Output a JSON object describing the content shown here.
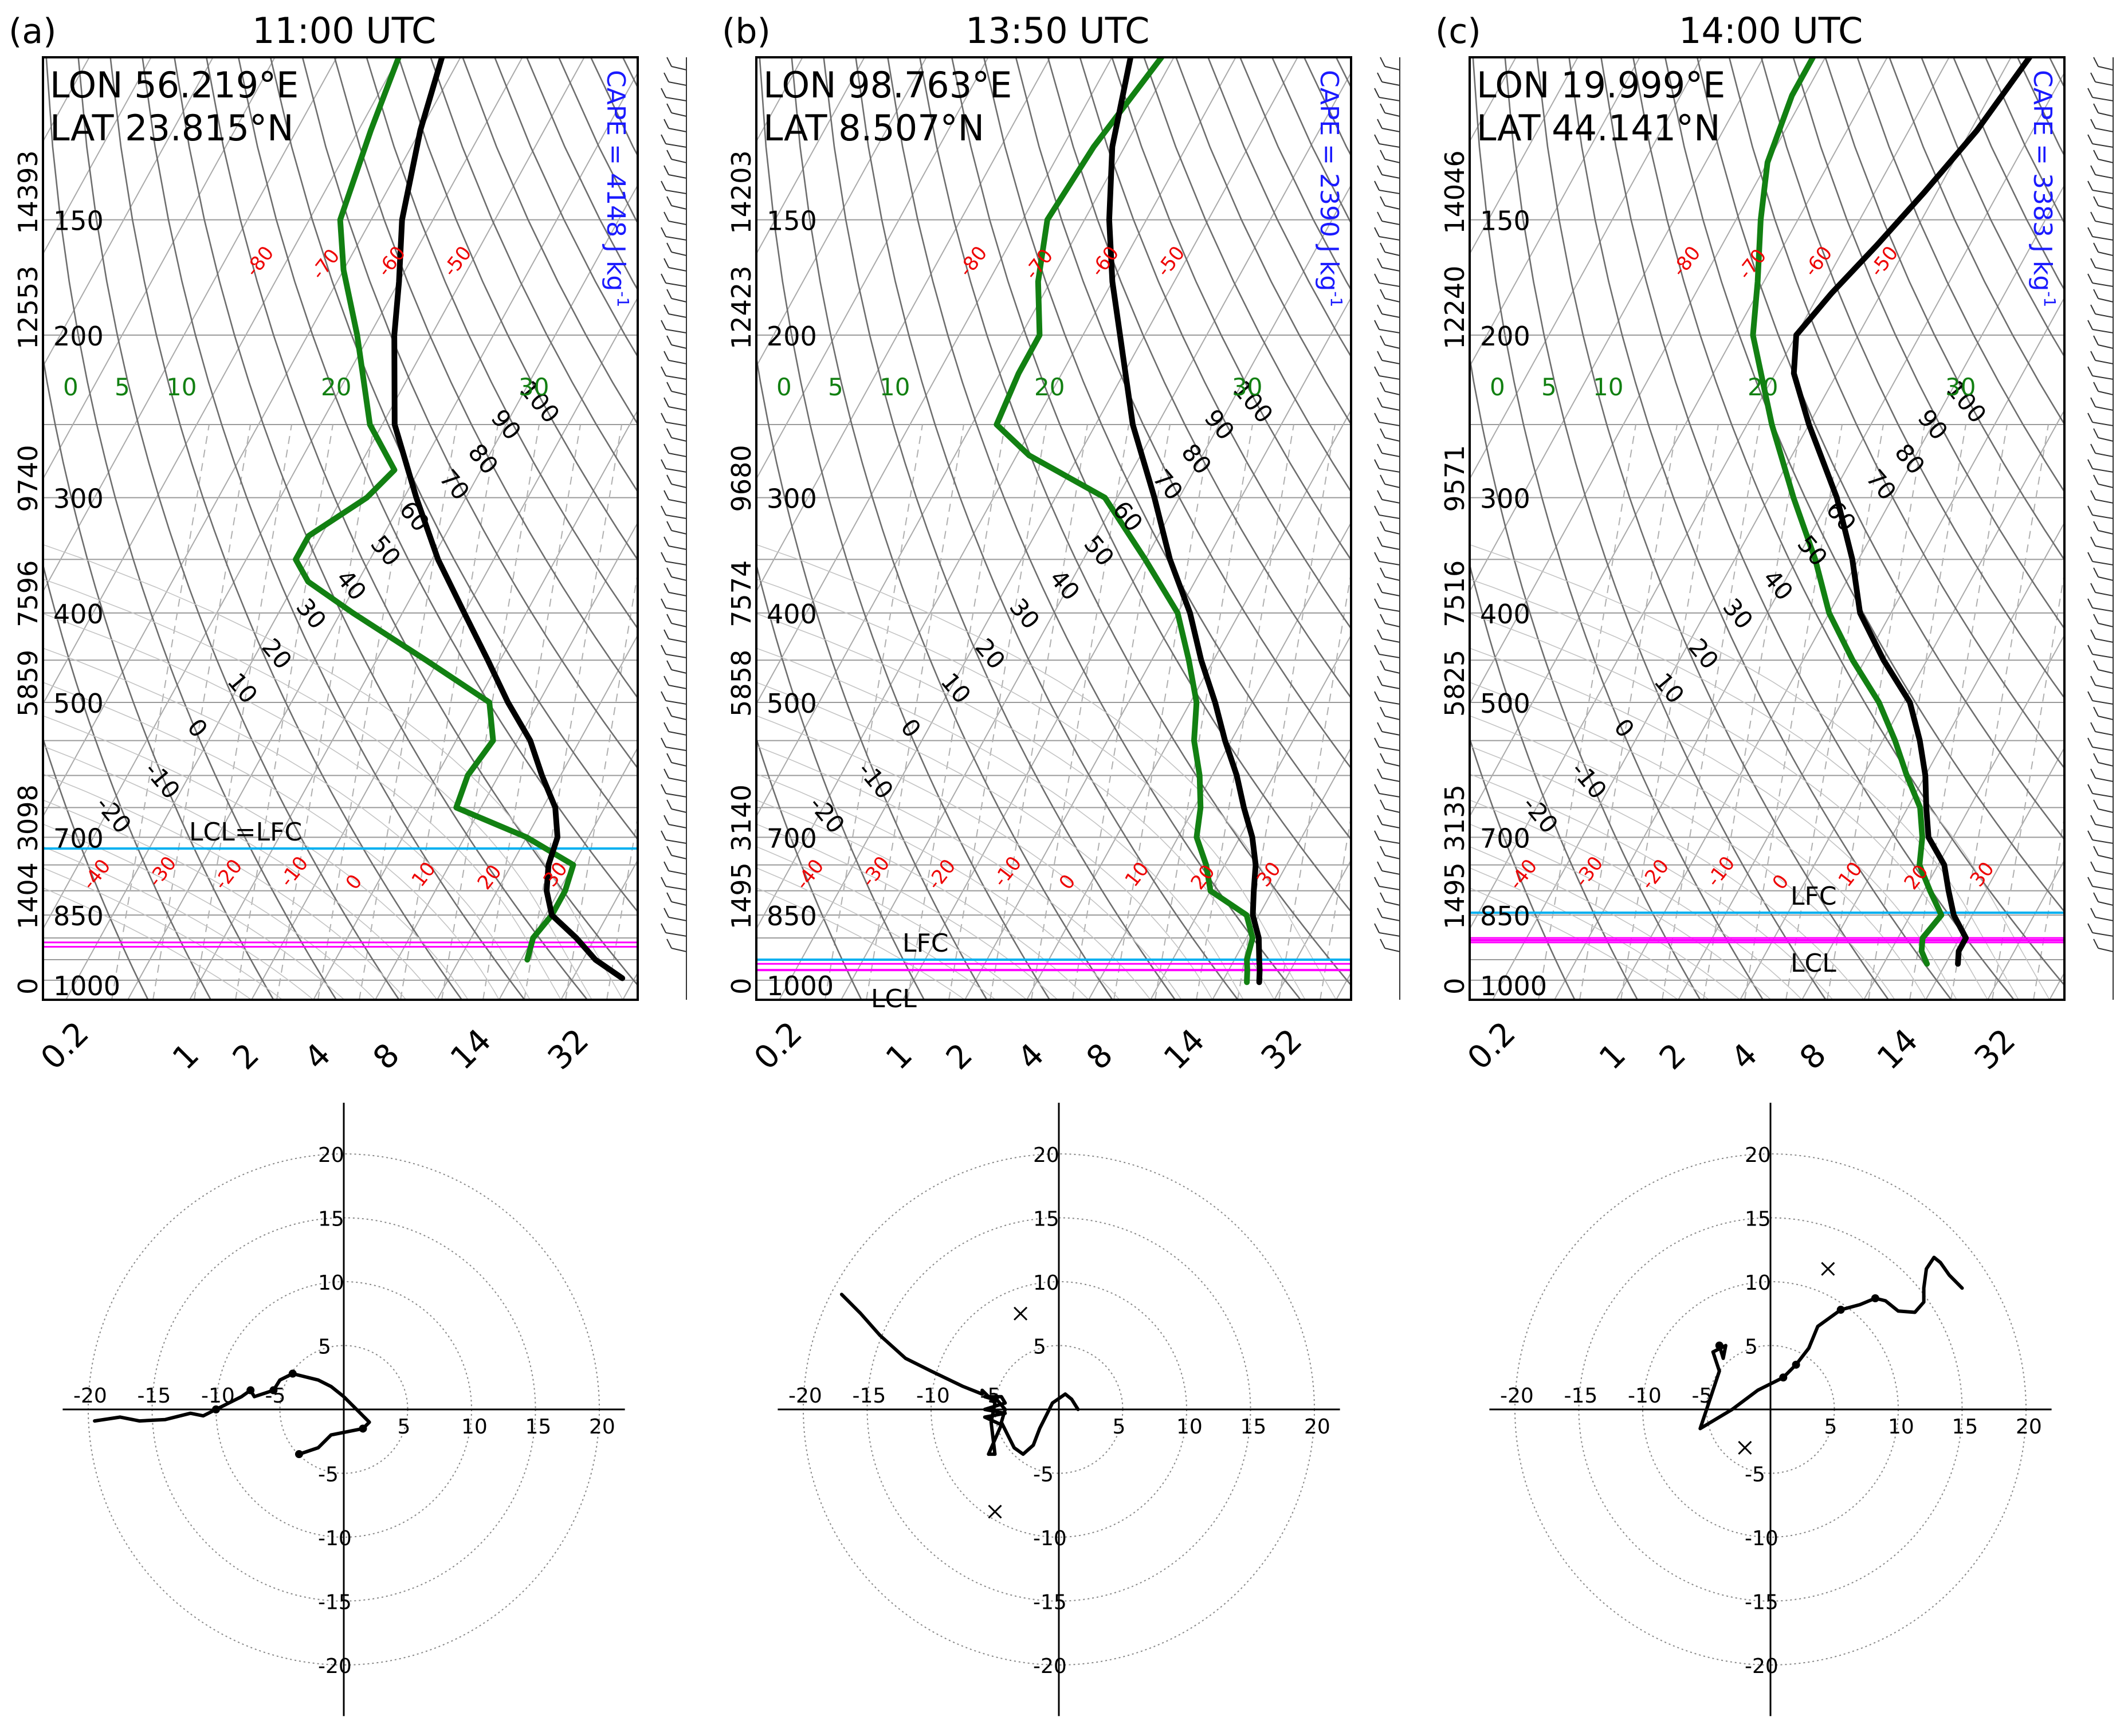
{
  "chart_data": [
    {
      "type": "skew-t",
      "panel_label": "(a)",
      "title": "11:00 UTC",
      "lon_text": "LON  56.219°E",
      "lat_text": "LAT  23.815°N",
      "cape_text": "CAPE = 4148 J kg",
      "cape_exp": "-1",
      "cape_value_j_per_kg": 4148,
      "pressure_ticks_hpa": [
        "150",
        "200",
        "300",
        "400",
        "500",
        "700",
        "850",
        "1000"
      ],
      "height_ticks_m": [
        "14393",
        "12553",
        "9740",
        "7596",
        "5859",
        "3098",
        "1404",
        "0"
      ],
      "mixing_ratio_ticks": [
        "0.2",
        "1",
        "2",
        "4",
        "8",
        "14",
        "32"
      ],
      "isotherm_labels_upper": [
        "-80",
        "-70",
        "-60",
        "-50"
      ],
      "isotherm_labels_lower": [
        "-40",
        "-30",
        "-20",
        "-10",
        "0",
        "10",
        "20",
        "30"
      ],
      "theta_e_labels": [
        "100",
        "90",
        "80",
        "70",
        "60",
        "50",
        "40",
        "30",
        "20",
        "10",
        "0",
        "-10",
        "-20"
      ],
      "wet_bulb_labels": [
        "0",
        "5",
        "10",
        "20",
        "30"
      ],
      "levels": [
        {
          "text": "LCL=LFC",
          "pressure_hpa": 720,
          "color": "#00b0f0"
        }
      ],
      "parcel_markers_hpa": [
        910,
        920
      ],
      "temperature_profile": [
        [
          995,
          38
        ],
        [
          950,
          32
        ],
        [
          900,
          27
        ],
        [
          850,
          21
        ],
        [
          800,
          18
        ],
        [
          750,
          16
        ],
        [
          700,
          15
        ],
        [
          650,
          12
        ],
        [
          600,
          7
        ],
        [
          550,
          2
        ],
        [
          500,
          -5
        ],
        [
          450,
          -12
        ],
        [
          400,
          -20
        ],
        [
          350,
          -29
        ],
        [
          300,
          -38
        ],
        [
          250,
          -48
        ],
        [
          200,
          -56
        ],
        [
          175,
          -60
        ],
        [
          150,
          -65
        ],
        [
          120,
          -70
        ],
        [
          100,
          -73
        ]
      ],
      "dewpoint_profile": [
        [
          950,
          21
        ],
        [
          900,
          20
        ],
        [
          850,
          21
        ],
        [
          800,
          21
        ],
        [
          750,
          20
        ],
        [
          700,
          10
        ],
        [
          650,
          -4
        ],
        [
          600,
          -5
        ],
        [
          550,
          -4
        ],
        [
          500,
          -8
        ],
        [
          450,
          -22
        ],
        [
          400,
          -38
        ],
        [
          370,
          -48
        ],
        [
          350,
          -52
        ],
        [
          330,
          -52
        ],
        [
          300,
          -46
        ],
        [
          280,
          -44
        ],
        [
          250,
          -52
        ],
        [
          200,
          -62
        ],
        [
          170,
          -70
        ],
        [
          150,
          -75
        ],
        [
          120,
          -78
        ],
        [
          100,
          -80
        ]
      ]
    },
    {
      "type": "skew-t",
      "panel_label": "(b)",
      "title": "13:50 UTC",
      "lon_text": "LON  98.763°E",
      "lat_text": "LAT   8.507°N",
      "cape_text": "CAPE = 2390 J kg",
      "cape_exp": "-1",
      "cape_value_j_per_kg": 2390,
      "pressure_ticks_hpa": [
        "150",
        "200",
        "300",
        "400",
        "500",
        "700",
        "850",
        "1000"
      ],
      "height_ticks_m": [
        "14203",
        "12423",
        "9680",
        "7574",
        "5858",
        "3140",
        "1495",
        "0"
      ],
      "mixing_ratio_ticks": [
        "0.2",
        "1",
        "2",
        "4",
        "8",
        "14",
        "32"
      ],
      "isotherm_labels_upper": [
        "-80",
        "-70",
        "-60",
        "-50"
      ],
      "isotherm_labels_lower": [
        "-40",
        "-30",
        "-20",
        "-10",
        "0",
        "10",
        "20",
        "30"
      ],
      "theta_e_labels": [
        "100",
        "90",
        "80",
        "70",
        "60",
        "50",
        "40",
        "30",
        "20",
        "10",
        "0",
        "-10",
        "-20"
      ],
      "wet_bulb_labels": [
        "0",
        "5",
        "10",
        "20",
        "30"
      ],
      "levels": [
        {
          "text": "LFC",
          "pressure_hpa": 950,
          "color": "#00b0f0"
        },
        {
          "text": "LCL",
          "pressure_hpa": 975,
          "color": "#ff00ff"
        }
      ],
      "parcel_markers_hpa": [
        960,
        975
      ],
      "temperature_profile": [
        [
          1005,
          26
        ],
        [
          975,
          25
        ],
        [
          950,
          24
        ],
        [
          900,
          22
        ],
        [
          850,
          19
        ],
        [
          800,
          17
        ],
        [
          750,
          15
        ],
        [
          700,
          12
        ],
        [
          650,
          8
        ],
        [
          600,
          4
        ],
        [
          550,
          -1
        ],
        [
          500,
          -6
        ],
        [
          450,
          -12
        ],
        [
          400,
          -18
        ],
        [
          350,
          -26
        ],
        [
          300,
          -34
        ],
        [
          250,
          -44
        ],
        [
          200,
          -54
        ],
        [
          175,
          -60
        ],
        [
          150,
          -66
        ],
        [
          125,
          -72
        ],
        [
          100,
          -77
        ]
      ],
      "dewpoint_profile": [
        [
          1005,
          24
        ],
        [
          975,
          23
        ],
        [
          950,
          22
        ],
        [
          900,
          21
        ],
        [
          850,
          18
        ],
        [
          800,
          10
        ],
        [
          750,
          7
        ],
        [
          700,
          3
        ],
        [
          650,
          1
        ],
        [
          600,
          -2
        ],
        [
          550,
          -6
        ],
        [
          500,
          -9
        ],
        [
          450,
          -14
        ],
        [
          400,
          -20
        ],
        [
          350,
          -30
        ],
        [
          300,
          -42
        ],
        [
          270,
          -58
        ],
        [
          250,
          -66
        ],
        [
          220,
          -67
        ],
        [
          200,
          -67
        ],
        [
          175,
          -72
        ],
        [
          150,
          -76
        ],
        [
          125,
          -75
        ],
        [
          100,
          -72
        ]
      ]
    },
    {
      "type": "skew-t",
      "panel_label": "(c)",
      "title": "14:00 UTC",
      "lon_text": "LON  19.999°E",
      "lat_text": "LAT  44.141°N",
      "cape_text": "CAPE = 3383 J kg",
      "cape_exp": "-1",
      "cape_value_j_per_kg": 3383,
      "pressure_ticks_hpa": [
        "150",
        "200",
        "300",
        "400",
        "500",
        "700",
        "850",
        "1000"
      ],
      "height_ticks_m": [
        "14046",
        "12240",
        "9571",
        "7516",
        "5825",
        "3135",
        "1495",
        "0"
      ],
      "mixing_ratio_ticks": [
        "0.2",
        "1",
        "2",
        "4",
        "8",
        "14",
        "32"
      ],
      "isotherm_labels_upper": [
        "-80",
        "-70",
        "-60",
        "-50"
      ],
      "isotherm_labels_lower": [
        "-40",
        "-30",
        "-20",
        "-10",
        "0",
        "10",
        "20",
        "30"
      ],
      "theta_e_labels": [
        "100",
        "90",
        "80",
        "70",
        "60",
        "50",
        "40",
        "30",
        "20",
        "10",
        "0",
        "-10",
        "-20"
      ],
      "wet_bulb_labels": [
        "0",
        "5",
        "10",
        "20",
        "30"
      ],
      "levels": [
        {
          "text": "LFC",
          "pressure_hpa": 845,
          "color": "#00b0f0"
        },
        {
          "text": "LCL",
          "pressure_hpa": 905,
          "color": "#ff00ff"
        }
      ],
      "parcel_markers_hpa": [
        900,
        910
      ],
      "temperature_profile": [
        [
          960,
          22
        ],
        [
          930,
          21
        ],
        [
          900,
          21
        ],
        [
          850,
          17
        ],
        [
          800,
          14
        ],
        [
          750,
          11
        ],
        [
          700,
          6
        ],
        [
          650,
          3
        ],
        [
          600,
          0
        ],
        [
          550,
          -4
        ],
        [
          500,
          -9
        ],
        [
          450,
          -17
        ],
        [
          400,
          -25
        ],
        [
          350,
          -31
        ],
        [
          300,
          -39
        ],
        [
          250,
          -50
        ],
        [
          220,
          -57
        ],
        [
          200,
          -60
        ],
        [
          180,
          -58
        ],
        [
          160,
          -55
        ],
        [
          140,
          -52
        ],
        [
          120,
          -49
        ],
        [
          100,
          -47
        ]
      ],
      "dewpoint_profile": [
        [
          960,
          17
        ],
        [
          930,
          15
        ],
        [
          900,
          14
        ],
        [
          850,
          15
        ],
        [
          800,
          11
        ],
        [
          750,
          7
        ],
        [
          700,
          5
        ],
        [
          650,
          2
        ],
        [
          600,
          -3
        ],
        [
          550,
          -8
        ],
        [
          500,
          -14
        ],
        [
          450,
          -22
        ],
        [
          400,
          -30
        ],
        [
          350,
          -37
        ],
        [
          300,
          -46
        ],
        [
          250,
          -56
        ],
        [
          200,
          -67
        ],
        [
          175,
          -71
        ],
        [
          150,
          -76
        ],
        [
          130,
          -80
        ],
        [
          110,
          -82
        ],
        [
          100,
          -82
        ]
      ]
    },
    {
      "type": "hodograph",
      "panel_label": "(a)",
      "range_rings": [
        5,
        10,
        15,
        20
      ],
      "tick_labels_pos": [
        "5",
        "10",
        "15",
        "20"
      ],
      "tick_labels_neg": [
        "-5",
        "-10",
        "-15",
        "-20"
      ],
      "path_uv": [
        [
          -3.5,
          -3.5
        ],
        [
          -2,
          -3
        ],
        [
          -1,
          -2
        ],
        [
          1.5,
          -1.5
        ],
        [
          2,
          -1
        ],
        [
          1,
          0
        ],
        [
          0,
          1
        ],
        [
          -1,
          1.8
        ],
        [
          -2,
          2.3
        ],
        [
          -4,
          2.8
        ],
        [
          -5,
          2.3
        ],
        [
          -5.5,
          1.5
        ],
        [
          -7,
          1
        ],
        [
          -7.3,
          1.5
        ],
        [
          -8,
          1
        ],
        [
          -9,
          0.5
        ],
        [
          -10,
          0
        ],
        [
          -11,
          -0.5
        ],
        [
          -12,
          -0.3
        ],
        [
          -14,
          -0.8
        ],
        [
          -16,
          -0.9
        ],
        [
          -17.5,
          -0.6
        ],
        [
          -19.5,
          -0.9
        ]
      ],
      "node_uv": [
        [
          -3.5,
          -3.5
        ],
        [
          1.5,
          -1.5
        ],
        [
          -4,
          2.8
        ],
        [
          -5.5,
          1.5
        ],
        [
          -7.3,
          1.5
        ],
        [
          -10,
          0
        ]
      ],
      "storm_motion_uv": []
    },
    {
      "type": "hodograph",
      "panel_label": "(b)",
      "range_rings": [
        5,
        10,
        15,
        20
      ],
      "tick_labels_pos": [
        "5",
        "10",
        "15",
        "20"
      ],
      "tick_labels_neg": [
        "-5",
        "-10",
        "-15",
        "-20"
      ],
      "path_uv": [
        [
          1.5,
          0
        ],
        [
          1,
          0.8
        ],
        [
          0.5,
          1.2
        ],
        [
          -0.5,
          0.5
        ],
        [
          -1,
          -0.5
        ],
        [
          -1.5,
          -1.5
        ],
        [
          -2,
          -2.8
        ],
        [
          -2.8,
          -3.5
        ],
        [
          -3.5,
          -3
        ],
        [
          -4,
          -2
        ],
        [
          -4.5,
          -1
        ],
        [
          -4.2,
          0
        ],
        [
          -4.8,
          0.7
        ],
        [
          -5.8,
          1
        ],
        [
          -4.5,
          1
        ],
        [
          -4.2,
          0.5
        ],
        [
          -5.8,
          0
        ],
        [
          -4.2,
          -0.3
        ],
        [
          -5.8,
          -0.6
        ],
        [
          -4.5,
          -1.2
        ],
        [
          -5.5,
          -3.5
        ],
        [
          -5,
          -3.5
        ],
        [
          -5.3,
          -1
        ],
        [
          -5,
          0.5
        ],
        [
          -6,
          1.5
        ],
        [
          -6,
          1.2
        ],
        [
          -7.5,
          1.8
        ],
        [
          -10,
          3
        ],
        [
          -12,
          4
        ],
        [
          -14,
          5.8
        ],
        [
          -15.5,
          7.5
        ],
        [
          -16.5,
          8.5
        ],
        [
          -17,
          9
        ]
      ],
      "node_uv": [],
      "storm_motion_uv": [
        [
          -3,
          7.5
        ],
        [
          -5,
          -8
        ]
      ]
    },
    {
      "type": "hodograph",
      "panel_label": "(c)",
      "range_rings": [
        5,
        10,
        15,
        20
      ],
      "tick_labels_pos": [
        "5",
        "10",
        "15",
        "20"
      ],
      "tick_labels_neg": [
        "-5",
        "-10",
        "-15",
        "-20"
      ],
      "path_uv": [
        [
          -4,
          5
        ],
        [
          -3.7,
          4
        ],
        [
          -3.5,
          5
        ],
        [
          -4.5,
          4.5
        ],
        [
          -4,
          3
        ],
        [
          -5,
          0
        ],
        [
          -5.5,
          -1.5
        ],
        [
          -3,
          0
        ],
        [
          -1,
          1.5
        ],
        [
          1,
          2.5
        ],
        [
          2,
          3.5
        ],
        [
          3,
          4.8
        ],
        [
          3.7,
          6.5
        ],
        [
          5.5,
          7.8
        ],
        [
          7,
          8.2
        ],
        [
          8.2,
          8.7
        ],
        [
          9,
          8.5
        ],
        [
          10,
          7.7
        ],
        [
          11.3,
          7.6
        ],
        [
          12,
          8.4
        ],
        [
          12,
          9.5
        ],
        [
          12.2,
          11
        ],
        [
          12.8,
          11.9
        ],
        [
          13.3,
          11.5
        ],
        [
          14,
          10.5
        ],
        [
          15,
          9.5
        ]
      ],
      "node_uv": [
        [
          -4,
          5
        ],
        [
          1,
          2.5
        ],
        [
          2,
          3.5
        ],
        [
          5.5,
          7.8
        ],
        [
          8.2,
          8.7
        ]
      ],
      "storm_motion_uv": [
        [
          4.5,
          11
        ],
        [
          -2,
          -3
        ]
      ]
    }
  ]
}
